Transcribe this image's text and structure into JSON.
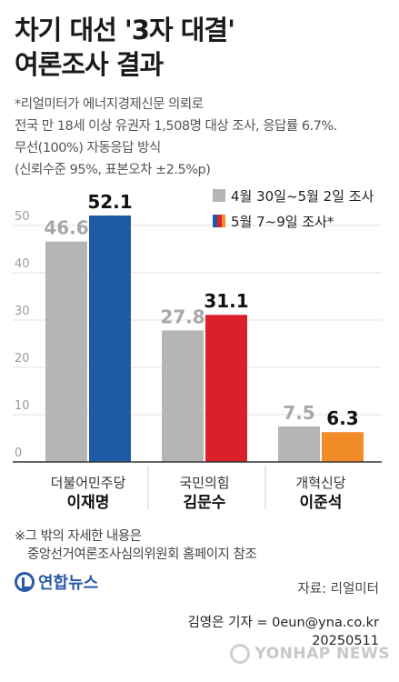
{
  "title_line1": "차기 대선 '3자 대결'",
  "title_line2": "여론조사 결과",
  "subtitle_lines": [
    "*리얼미터가 에너지경제신문 의뢰로",
    "전국 만 18세 이상 유권자 1,508명 대상 조사, 응답률 6.7%.",
    "무선(100%) 자동응답 방식",
    "(신뢰수준 95%, 표본오차 ±2.5%p)"
  ],
  "note_line1": "※그 밖의 자세한 내용은",
  "note_line2": "중앙선거여론조사심의위원회 홈페이지 참조",
  "logo_text": "연합뉴스",
  "source": "자료: 리얼미터",
  "credit_line1": "김영은 기자 = 0eun@yna.co.kr",
  "credit_line2": "20250511",
  "watermark_text": "YONHAP NEWS",
  "colors": {
    "gray": "#b5b5b5",
    "minjoo": "#1f5aa6",
    "ppp": "#d9202b",
    "reform": "#f28c28",
    "grid": "#e0e0e0"
  },
  "chart_data": {
    "type": "bar",
    "categories": [
      {
        "party": "더불어민주당",
        "candidate": "이재명"
      },
      {
        "party": "국민의힘",
        "candidate": "김문수"
      },
      {
        "party": "개혁신당",
        "candidate": "이준석"
      }
    ],
    "series": [
      {
        "name": "4월 30일~5월 2일 조사",
        "values": [
          46.6,
          27.8,
          7.5
        ]
      },
      {
        "name": "5월 7~9일 조사*",
        "values": [
          52.1,
          31.1,
          6.3
        ]
      }
    ],
    "value_labels": [
      [
        "46.6",
        "27.8",
        "7.5"
      ],
      [
        "52.1",
        "31.1",
        "6.3"
      ]
    ],
    "y_ticks": [
      "0",
      "10",
      "20",
      "30",
      "40",
      "50"
    ],
    "ylim": [
      0,
      55
    ],
    "grid": true,
    "legend_position": "top-right"
  }
}
